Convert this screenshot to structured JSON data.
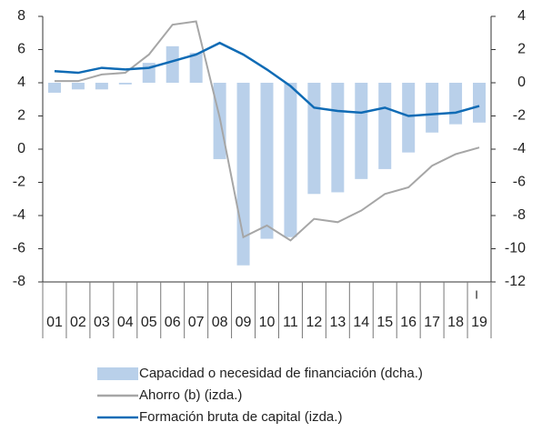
{
  "chart_data": {
    "type": "combo",
    "categories": [
      "01",
      "02",
      "03",
      "04",
      "05",
      "06",
      "07",
      "08",
      "09",
      "10",
      "11",
      "12",
      "13",
      "14",
      "15",
      "16",
      "17",
      "18",
      "19"
    ],
    "series": [
      {
        "name": "Capacidad o necesidad de financiación (dcha.)",
        "type": "bar",
        "axis": "y2",
        "color": "#b9d0ea",
        "values": [
          -0.6,
          -0.4,
          -0.4,
          -0.1,
          1.2,
          2.2,
          1.8,
          -4.6,
          -11.0,
          -9.4,
          -9.3,
          -6.7,
          -6.6,
          -5.8,
          -5.2,
          -4.2,
          -3.0,
          -2.5,
          -2.4
        ]
      },
      {
        "name": "Ahorro (b) (izda.)",
        "type": "line",
        "color": "#a6a6a6",
        "values": [
          4.1,
          4.1,
          4.5,
          4.6,
          5.7,
          7.5,
          7.7,
          1.9,
          -5.3,
          -4.6,
          -5.5,
          -4.2,
          -4.4,
          -3.7,
          -2.7,
          -2.3,
          -1.0,
          -0.3,
          0.1
        ]
      },
      {
        "name": "Formación bruta de capital (izda.)",
        "type": "line",
        "color": "#0f6bb5",
        "values": [
          4.7,
          4.6,
          4.9,
          4.8,
          4.9,
          5.3,
          5.7,
          6.4,
          5.7,
          4.8,
          3.8,
          2.5,
          2.3,
          2.2,
          2.5,
          2.0,
          2.1,
          2.2,
          2.6
        ]
      }
    ],
    "ylim": [
      -8,
      8
    ],
    "yticks": [
      -8,
      -6,
      -4,
      -2,
      0,
      2,
      4,
      6,
      8
    ],
    "y2lim": [
      -12,
      4
    ],
    "y2ticks": [
      -12,
      -10,
      -8,
      -6,
      -4,
      -2,
      0,
      2,
      4
    ],
    "annotation": "I",
    "legend": "bottom"
  }
}
